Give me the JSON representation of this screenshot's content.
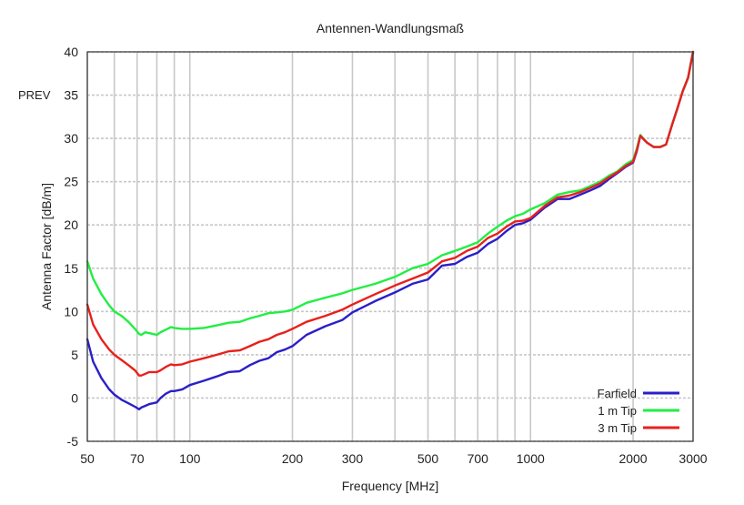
{
  "page": {
    "prev_label": "PREV"
  },
  "chart_data": {
    "type": "line",
    "title": "Antennen-Wandlungsmaß",
    "xlabel": "Frequency [MHz]",
    "ylabel": "Antenna Factor [dB/m]",
    "x_scale": "log",
    "xlim": [
      50,
      3000
    ],
    "ylim": [
      -5,
      40
    ],
    "grid": true,
    "legend_position": "bottom-right",
    "x_ticks": [
      50,
      70,
      100,
      200,
      300,
      500,
      700,
      1000,
      2000,
      3000
    ],
    "x_tick_labels": [
      "50",
      "70",
      "100",
      "200",
      "300",
      "500",
      "700",
      "1000",
      "2000",
      "3000"
    ],
    "y_ticks": [
      -5,
      0,
      5,
      10,
      15,
      20,
      25,
      30,
      35,
      40
    ],
    "y_tick_labels": [
      "-5",
      "0",
      "5",
      "10",
      "15",
      "20",
      "25",
      "30",
      "35",
      "40"
    ],
    "x_minor_grid": [
      60,
      80,
      90,
      400,
      600,
      800,
      900
    ],
    "series": [
      {
        "name": "Farfield",
        "color": "#2a1fc8",
        "x": [
          50,
          52,
          55,
          58,
          60,
          63,
          66,
          69,
          71,
          72,
          74,
          76,
          78,
          80,
          82,
          85,
          88,
          90,
          95,
          100,
          110,
          120,
          130,
          140,
          150,
          160,
          170,
          180,
          190,
          200,
          220,
          250,
          280,
          300,
          350,
          400,
          450,
          500,
          550,
          600,
          650,
          700,
          750,
          800,
          850,
          900,
          950,
          1000,
          1100,
          1200,
          1300,
          1400,
          1500,
          1600,
          1700,
          1800,
          1900,
          2000,
          2050,
          2100,
          2200,
          2300,
          2400,
          2500,
          2600,
          2700,
          2800,
          2900,
          3000
        ],
        "y": [
          6.8,
          4.2,
          2.3,
          1.0,
          0.4,
          -0.2,
          -0.6,
          -1.0,
          -1.3,
          -1.1,
          -0.9,
          -0.7,
          -0.6,
          -0.5,
          0.0,
          0.5,
          0.8,
          0.8,
          1.0,
          1.5,
          2.0,
          2.5,
          3.0,
          3.1,
          3.8,
          4.3,
          4.6,
          5.3,
          5.6,
          6.0,
          7.3,
          8.3,
          9.0,
          9.9,
          11.2,
          12.2,
          13.2,
          13.7,
          15.3,
          15.5,
          16.3,
          16.8,
          17.8,
          18.4,
          19.3,
          20.0,
          20.2,
          20.6,
          22.0,
          23.0,
          23.0,
          23.5,
          24.0,
          24.5,
          25.3,
          26.0,
          26.7,
          27.2,
          28.5,
          30.3,
          29.5,
          29.0,
          29.0,
          29.3,
          31.5,
          33.5,
          35.5,
          37.0,
          40.0
        ]
      },
      {
        "name": "1 m Tip",
        "color": "#22ee44",
        "x": [
          50,
          52,
          55,
          58,
          60,
          63,
          66,
          69,
          71,
          72,
          74,
          76,
          78,
          80,
          82,
          85,
          88,
          90,
          95,
          100,
          110,
          120,
          130,
          140,
          150,
          160,
          170,
          180,
          190,
          200,
          220,
          250,
          280,
          300,
          350,
          400,
          450,
          500,
          550,
          600,
          650,
          700,
          750,
          800,
          850,
          900,
          950,
          1000,
          1100,
          1200,
          1300,
          1400,
          1500,
          1600,
          1700,
          1800,
          1900,
          2000,
          2050,
          2100,
          2200,
          2300,
          2400,
          2500,
          2600,
          2700,
          2800,
          2900,
          3000
        ],
        "y": [
          15.8,
          13.8,
          12.0,
          10.7,
          10.0,
          9.5,
          8.8,
          8.0,
          7.4,
          7.3,
          7.6,
          7.5,
          7.4,
          7.3,
          7.6,
          7.9,
          8.2,
          8.1,
          8.0,
          8.0,
          8.1,
          8.4,
          8.7,
          8.8,
          9.2,
          9.5,
          9.8,
          9.9,
          10.0,
          10.2,
          11.0,
          11.6,
          12.1,
          12.5,
          13.2,
          14.0,
          15.0,
          15.5,
          16.5,
          17.0,
          17.5,
          18.0,
          19.0,
          19.8,
          20.5,
          21.0,
          21.3,
          21.8,
          22.5,
          23.5,
          23.8,
          24.0,
          24.5,
          25.0,
          25.7,
          26.2,
          27.0,
          27.5,
          28.8,
          30.4,
          29.5,
          29.0,
          29.0,
          29.3,
          31.5,
          33.5,
          35.5,
          37.0,
          40.0
        ]
      },
      {
        "name": "3 m Tip",
        "color": "#e8201c",
        "x": [
          50,
          52,
          55,
          58,
          60,
          63,
          66,
          69,
          71,
          72,
          74,
          76,
          78,
          80,
          82,
          85,
          88,
          90,
          95,
          100,
          110,
          120,
          130,
          140,
          150,
          160,
          170,
          180,
          190,
          200,
          220,
          250,
          280,
          300,
          350,
          400,
          450,
          500,
          550,
          600,
          650,
          700,
          750,
          800,
          850,
          900,
          950,
          1000,
          1100,
          1200,
          1300,
          1400,
          1500,
          1600,
          1700,
          1800,
          1900,
          2000,
          2050,
          2100,
          2200,
          2300,
          2400,
          2500,
          2600,
          2700,
          2800,
          2900,
          3000
        ],
        "y": [
          10.8,
          8.5,
          6.8,
          5.6,
          5.0,
          4.4,
          3.8,
          3.2,
          2.6,
          2.6,
          2.8,
          3.0,
          3.0,
          3.0,
          3.2,
          3.6,
          3.9,
          3.8,
          3.9,
          4.2,
          4.6,
          5.0,
          5.4,
          5.5,
          6.0,
          6.5,
          6.8,
          7.3,
          7.6,
          8.0,
          8.8,
          9.5,
          10.2,
          10.8,
          12.0,
          13.0,
          13.8,
          14.5,
          15.8,
          16.2,
          17.0,
          17.5,
          18.5,
          19.0,
          19.8,
          20.4,
          20.5,
          20.8,
          22.2,
          23.2,
          23.4,
          23.8,
          24.3,
          24.8,
          25.5,
          26.1,
          26.8,
          27.3,
          28.6,
          30.3,
          29.5,
          29.0,
          29.0,
          29.3,
          31.5,
          33.5,
          35.5,
          37.0,
          40.0
        ]
      }
    ]
  }
}
